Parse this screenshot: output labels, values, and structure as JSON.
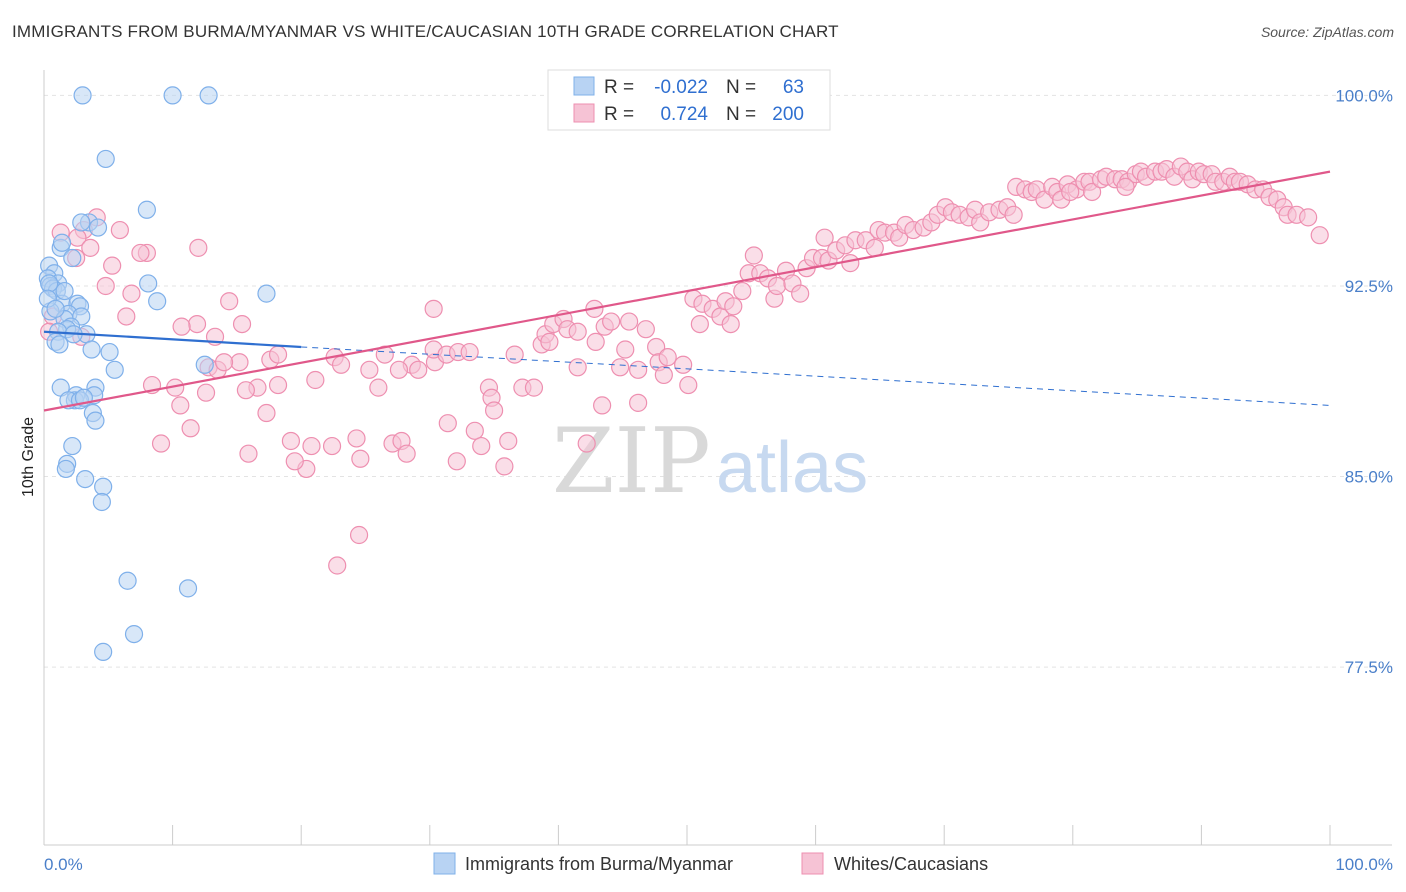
{
  "title": "IMMIGRANTS FROM BURMA/MYANMAR VS WHITE/CAUCASIAN 10TH GRADE CORRELATION CHART",
  "source": "Source: ZipAtlas.com",
  "chart_data": {
    "type": "scatter",
    "ylabel": "10th Grade",
    "xlim": [
      0,
      100
    ],
    "ylim": [
      70.5,
      101
    ],
    "y_ticks": [
      100.0,
      92.5,
      85.0,
      77.5
    ],
    "y_tick_labels": [
      "100.0%",
      "92.5%",
      "85.0%",
      "77.5%"
    ],
    "x_tick_labels": [
      "0.0%",
      "100.0%"
    ],
    "watermark": "ZIPatlas",
    "legend": {
      "rows": [
        {
          "r_label": "R =",
          "r_value": "-0.022",
          "n_label": "N =",
          "n_value": "63"
        },
        {
          "r_label": "R =",
          "r_value": "0.724",
          "n_label": "N =",
          "n_value": "200"
        }
      ]
    },
    "series": [
      {
        "name": "Immigrants from Burma/Myanmar",
        "color": "#7fb0ea",
        "fill": "#b8d3f3",
        "trend": {
          "x": [
            0,
            20
          ],
          "y": [
            90.7,
            90.1
          ],
          "dash_to": [
            100,
            87.8
          ]
        },
        "points": [
          [
            3,
            100
          ],
          [
            10,
            100
          ],
          [
            12.8,
            100
          ],
          [
            4.8,
            97.5
          ],
          [
            8,
            95.5
          ],
          [
            3.5,
            95
          ],
          [
            4.2,
            94.8
          ],
          [
            1.3,
            94
          ],
          [
            2.2,
            93.6
          ],
          [
            0.4,
            93.3
          ],
          [
            0.8,
            93
          ],
          [
            0.3,
            92.8
          ],
          [
            1.1,
            92.6
          ],
          [
            0.5,
            92.5
          ],
          [
            0.7,
            92.4
          ],
          [
            1.0,
            92.3
          ],
          [
            0.4,
            92.6
          ],
          [
            8.1,
            92.6
          ],
          [
            17.3,
            92.2
          ],
          [
            8.8,
            91.9
          ],
          [
            1.4,
            91.8
          ],
          [
            2.6,
            91.8
          ],
          [
            2.8,
            91.7
          ],
          [
            0.5,
            91.5
          ],
          [
            1.9,
            91.4
          ],
          [
            1.6,
            91.2
          ],
          [
            2.9,
            91.3
          ],
          [
            2.1,
            90.9
          ],
          [
            1.8,
            90.8
          ],
          [
            1.1,
            90.7
          ],
          [
            3.3,
            90.6
          ],
          [
            0.9,
            90.3
          ],
          [
            1.2,
            90.2
          ],
          [
            3.7,
            90.0
          ],
          [
            5.1,
            89.9
          ],
          [
            12.5,
            89.4
          ],
          [
            5.5,
            89.2
          ],
          [
            1.3,
            88.5
          ],
          [
            4.0,
            88.5
          ],
          [
            2.5,
            88.2
          ],
          [
            3.9,
            88.2
          ],
          [
            2.4,
            88.0
          ],
          [
            1.9,
            88.0
          ],
          [
            2.8,
            88.0
          ],
          [
            3.8,
            87.5
          ],
          [
            4.0,
            87.2
          ],
          [
            2.2,
            86.2
          ],
          [
            1.8,
            85.5
          ],
          [
            1.7,
            85.3
          ],
          [
            3.2,
            84.9
          ],
          [
            4.6,
            84.6
          ],
          [
            4.5,
            84.0
          ],
          [
            6.5,
            80.9
          ],
          [
            11.2,
            80.6
          ],
          [
            7.0,
            78.8
          ],
          [
            4.6,
            78.1
          ],
          [
            1.4,
            94.2
          ],
          [
            2.9,
            95.0
          ],
          [
            0.3,
            92.0
          ],
          [
            1.6,
            92.3
          ],
          [
            2.3,
            90.6
          ],
          [
            3.1,
            88.1
          ],
          [
            0.9,
            91.6
          ]
        ]
      },
      {
        "name": "Whites/Caucasians",
        "color": "#ee8fb0",
        "fill": "#f6c3d5",
        "trend": {
          "x": [
            0,
            100
          ],
          "y": [
            87.6,
            97.0
          ]
        },
        "points": [
          [
            4.1,
            95.2
          ],
          [
            1.3,
            94.6
          ],
          [
            3.1,
            94.7
          ],
          [
            5.9,
            94.7
          ],
          [
            2.6,
            94.4
          ],
          [
            3.6,
            94.0
          ],
          [
            8.0,
            93.8
          ],
          [
            12.0,
            94.0
          ],
          [
            2.5,
            93.6
          ],
          [
            5.3,
            93.3
          ],
          [
            7.5,
            93.8
          ],
          [
            4.8,
            92.5
          ],
          [
            6.8,
            92.2
          ],
          [
            14.4,
            91.9
          ],
          [
            11.9,
            91.0
          ],
          [
            10.7,
            90.9
          ],
          [
            13.3,
            90.5
          ],
          [
            0.7,
            91.3
          ],
          [
            0.4,
            90.7
          ],
          [
            6.4,
            91.3
          ],
          [
            2.9,
            90.5
          ],
          [
            15.4,
            91.0
          ],
          [
            12.8,
            89.3
          ],
          [
            13.5,
            89.2
          ],
          [
            15.2,
            89.5
          ],
          [
            14.0,
            89.5
          ],
          [
            17.6,
            89.6
          ],
          [
            18.2,
            89.8
          ],
          [
            16.6,
            88.5
          ],
          [
            17.3,
            87.5
          ],
          [
            18.2,
            88.6
          ],
          [
            10.2,
            88.5
          ],
          [
            8.4,
            88.6
          ],
          [
            10.6,
            87.8
          ],
          [
            12.6,
            88.3
          ],
          [
            15.7,
            88.4
          ],
          [
            11.4,
            86.9
          ],
          [
            9.1,
            86.3
          ],
          [
            15.9,
            85.9
          ],
          [
            19.2,
            86.4
          ],
          [
            20.4,
            85.3
          ],
          [
            20.8,
            86.2
          ],
          [
            19.5,
            85.6
          ],
          [
            21.1,
            88.8
          ],
          [
            22.4,
            86.2
          ],
          [
            22.6,
            89.7
          ],
          [
            23.1,
            89.4
          ],
          [
            24.3,
            86.5
          ],
          [
            24.6,
            85.7
          ],
          [
            25.3,
            89.2
          ],
          [
            26.0,
            88.5
          ],
          [
            26.5,
            89.8
          ],
          [
            27.1,
            86.3
          ],
          [
            27.8,
            86.4
          ],
          [
            28.2,
            85.9
          ],
          [
            28.6,
            89.4
          ],
          [
            27.6,
            89.2
          ],
          [
            29.1,
            89.2
          ],
          [
            30.3,
            91.6
          ],
          [
            30.4,
            89.5
          ],
          [
            30.3,
            90.0
          ],
          [
            31.4,
            87.1
          ],
          [
            31.3,
            89.8
          ],
          [
            32.1,
            85.6
          ],
          [
            32.2,
            89.9
          ],
          [
            33.1,
            89.9
          ],
          [
            33.5,
            86.8
          ],
          [
            34.0,
            86.2
          ],
          [
            34.6,
            88.5
          ],
          [
            34.8,
            88.1
          ],
          [
            35.0,
            87.6
          ],
          [
            35.8,
            85.4
          ],
          [
            36.1,
            86.4
          ],
          [
            36.6,
            89.8
          ],
          [
            37.2,
            88.5
          ],
          [
            38.1,
            88.5
          ],
          [
            38.7,
            90.2
          ],
          [
            39.0,
            90.6
          ],
          [
            39.3,
            90.3
          ],
          [
            39.6,
            91.0
          ],
          [
            40.4,
            91.2
          ],
          [
            40.7,
            90.8
          ],
          [
            41.5,
            89.3
          ],
          [
            41.5,
            90.7
          ],
          [
            42.2,
            86.3
          ],
          [
            42.9,
            90.3
          ],
          [
            42.8,
            91.6
          ],
          [
            43.6,
            90.9
          ],
          [
            44.1,
            91.1
          ],
          [
            43.4,
            87.8
          ],
          [
            44.8,
            89.3
          ],
          [
            45.2,
            90.0
          ],
          [
            45.5,
            91.1
          ],
          [
            46.2,
            89.2
          ],
          [
            46.8,
            90.8
          ],
          [
            47.6,
            90.1
          ],
          [
            47.8,
            89.5
          ],
          [
            48.2,
            89.0
          ],
          [
            48.5,
            89.7
          ],
          [
            49.7,
            89.4
          ],
          [
            50.5,
            92.0
          ],
          [
            51.0,
            91.0
          ],
          [
            51.2,
            91.8
          ],
          [
            52.0,
            91.6
          ],
          [
            52.6,
            91.3
          ],
          [
            53.0,
            91.9
          ],
          [
            53.4,
            91.0
          ],
          [
            53.6,
            91.7
          ],
          [
            54.3,
            92.3
          ],
          [
            54.8,
            93.0
          ],
          [
            55.2,
            93.7
          ],
          [
            55.7,
            93.0
          ],
          [
            56.3,
            92.8
          ],
          [
            56.8,
            92.0
          ],
          [
            57.0,
            92.5
          ],
          [
            57.7,
            93.1
          ],
          [
            58.2,
            92.6
          ],
          [
            58.8,
            92.2
          ],
          [
            59.3,
            93.2
          ],
          [
            59.8,
            93.6
          ],
          [
            60.5,
            93.6
          ],
          [
            61.0,
            93.5
          ],
          [
            60.7,
            94.4
          ],
          [
            61.6,
            93.9
          ],
          [
            62.3,
            94.1
          ],
          [
            62.7,
            93.4
          ],
          [
            63.1,
            94.3
          ],
          [
            63.9,
            94.3
          ],
          [
            64.6,
            94.0
          ],
          [
            64.9,
            94.7
          ],
          [
            65.4,
            94.6
          ],
          [
            66.1,
            94.6
          ],
          [
            66.5,
            94.4
          ],
          [
            67.0,
            94.9
          ],
          [
            67.6,
            94.7
          ],
          [
            68.4,
            94.8
          ],
          [
            69.0,
            95.0
          ],
          [
            69.5,
            95.3
          ],
          [
            70.1,
            95.6
          ],
          [
            70.6,
            95.4
          ],
          [
            71.2,
            95.3
          ],
          [
            71.9,
            95.2
          ],
          [
            72.4,
            95.5
          ],
          [
            72.8,
            95.0
          ],
          [
            73.5,
            95.4
          ],
          [
            74.3,
            95.5
          ],
          [
            74.9,
            95.6
          ],
          [
            75.4,
            95.3
          ],
          [
            75.6,
            96.4
          ],
          [
            76.3,
            96.3
          ],
          [
            76.8,
            96.2
          ],
          [
            77.2,
            96.3
          ],
          [
            77.8,
            95.9
          ],
          [
            78.4,
            96.4
          ],
          [
            78.8,
            96.2
          ],
          [
            79.1,
            95.9
          ],
          [
            79.6,
            96.5
          ],
          [
            80.3,
            96.3
          ],
          [
            80.9,
            96.6
          ],
          [
            81.3,
            96.6
          ],
          [
            81.5,
            96.2
          ],
          [
            82.2,
            96.7
          ],
          [
            82.6,
            96.8
          ],
          [
            83.3,
            96.7
          ],
          [
            83.8,
            96.7
          ],
          [
            84.3,
            96.6
          ],
          [
            84.9,
            96.9
          ],
          [
            85.3,
            97.0
          ],
          [
            85.7,
            96.8
          ],
          [
            86.4,
            97.0
          ],
          [
            86.9,
            97.0
          ],
          [
            87.3,
            97.1
          ],
          [
            87.9,
            96.8
          ],
          [
            88.4,
            97.2
          ],
          [
            88.9,
            97.0
          ],
          [
            89.3,
            96.7
          ],
          [
            89.8,
            97.0
          ],
          [
            90.2,
            96.9
          ],
          [
            90.8,
            96.9
          ],
          [
            91.1,
            96.6
          ],
          [
            91.7,
            96.6
          ],
          [
            92.2,
            96.8
          ],
          [
            92.6,
            96.6
          ],
          [
            93.0,
            96.6
          ],
          [
            93.6,
            96.5
          ],
          [
            94.2,
            96.3
          ],
          [
            94.8,
            96.3
          ],
          [
            95.3,
            96.0
          ],
          [
            95.9,
            95.9
          ],
          [
            96.4,
            95.6
          ],
          [
            96.7,
            95.3
          ],
          [
            97.4,
            95.3
          ],
          [
            98.3,
            95.2
          ],
          [
            99.2,
            94.5
          ],
          [
            79.8,
            96.2
          ],
          [
            84.1,
            96.4
          ],
          [
            50.1,
            88.6
          ],
          [
            46.2,
            87.9
          ],
          [
            22.8,
            81.5
          ],
          [
            24.5,
            82.7
          ]
        ]
      }
    ]
  }
}
